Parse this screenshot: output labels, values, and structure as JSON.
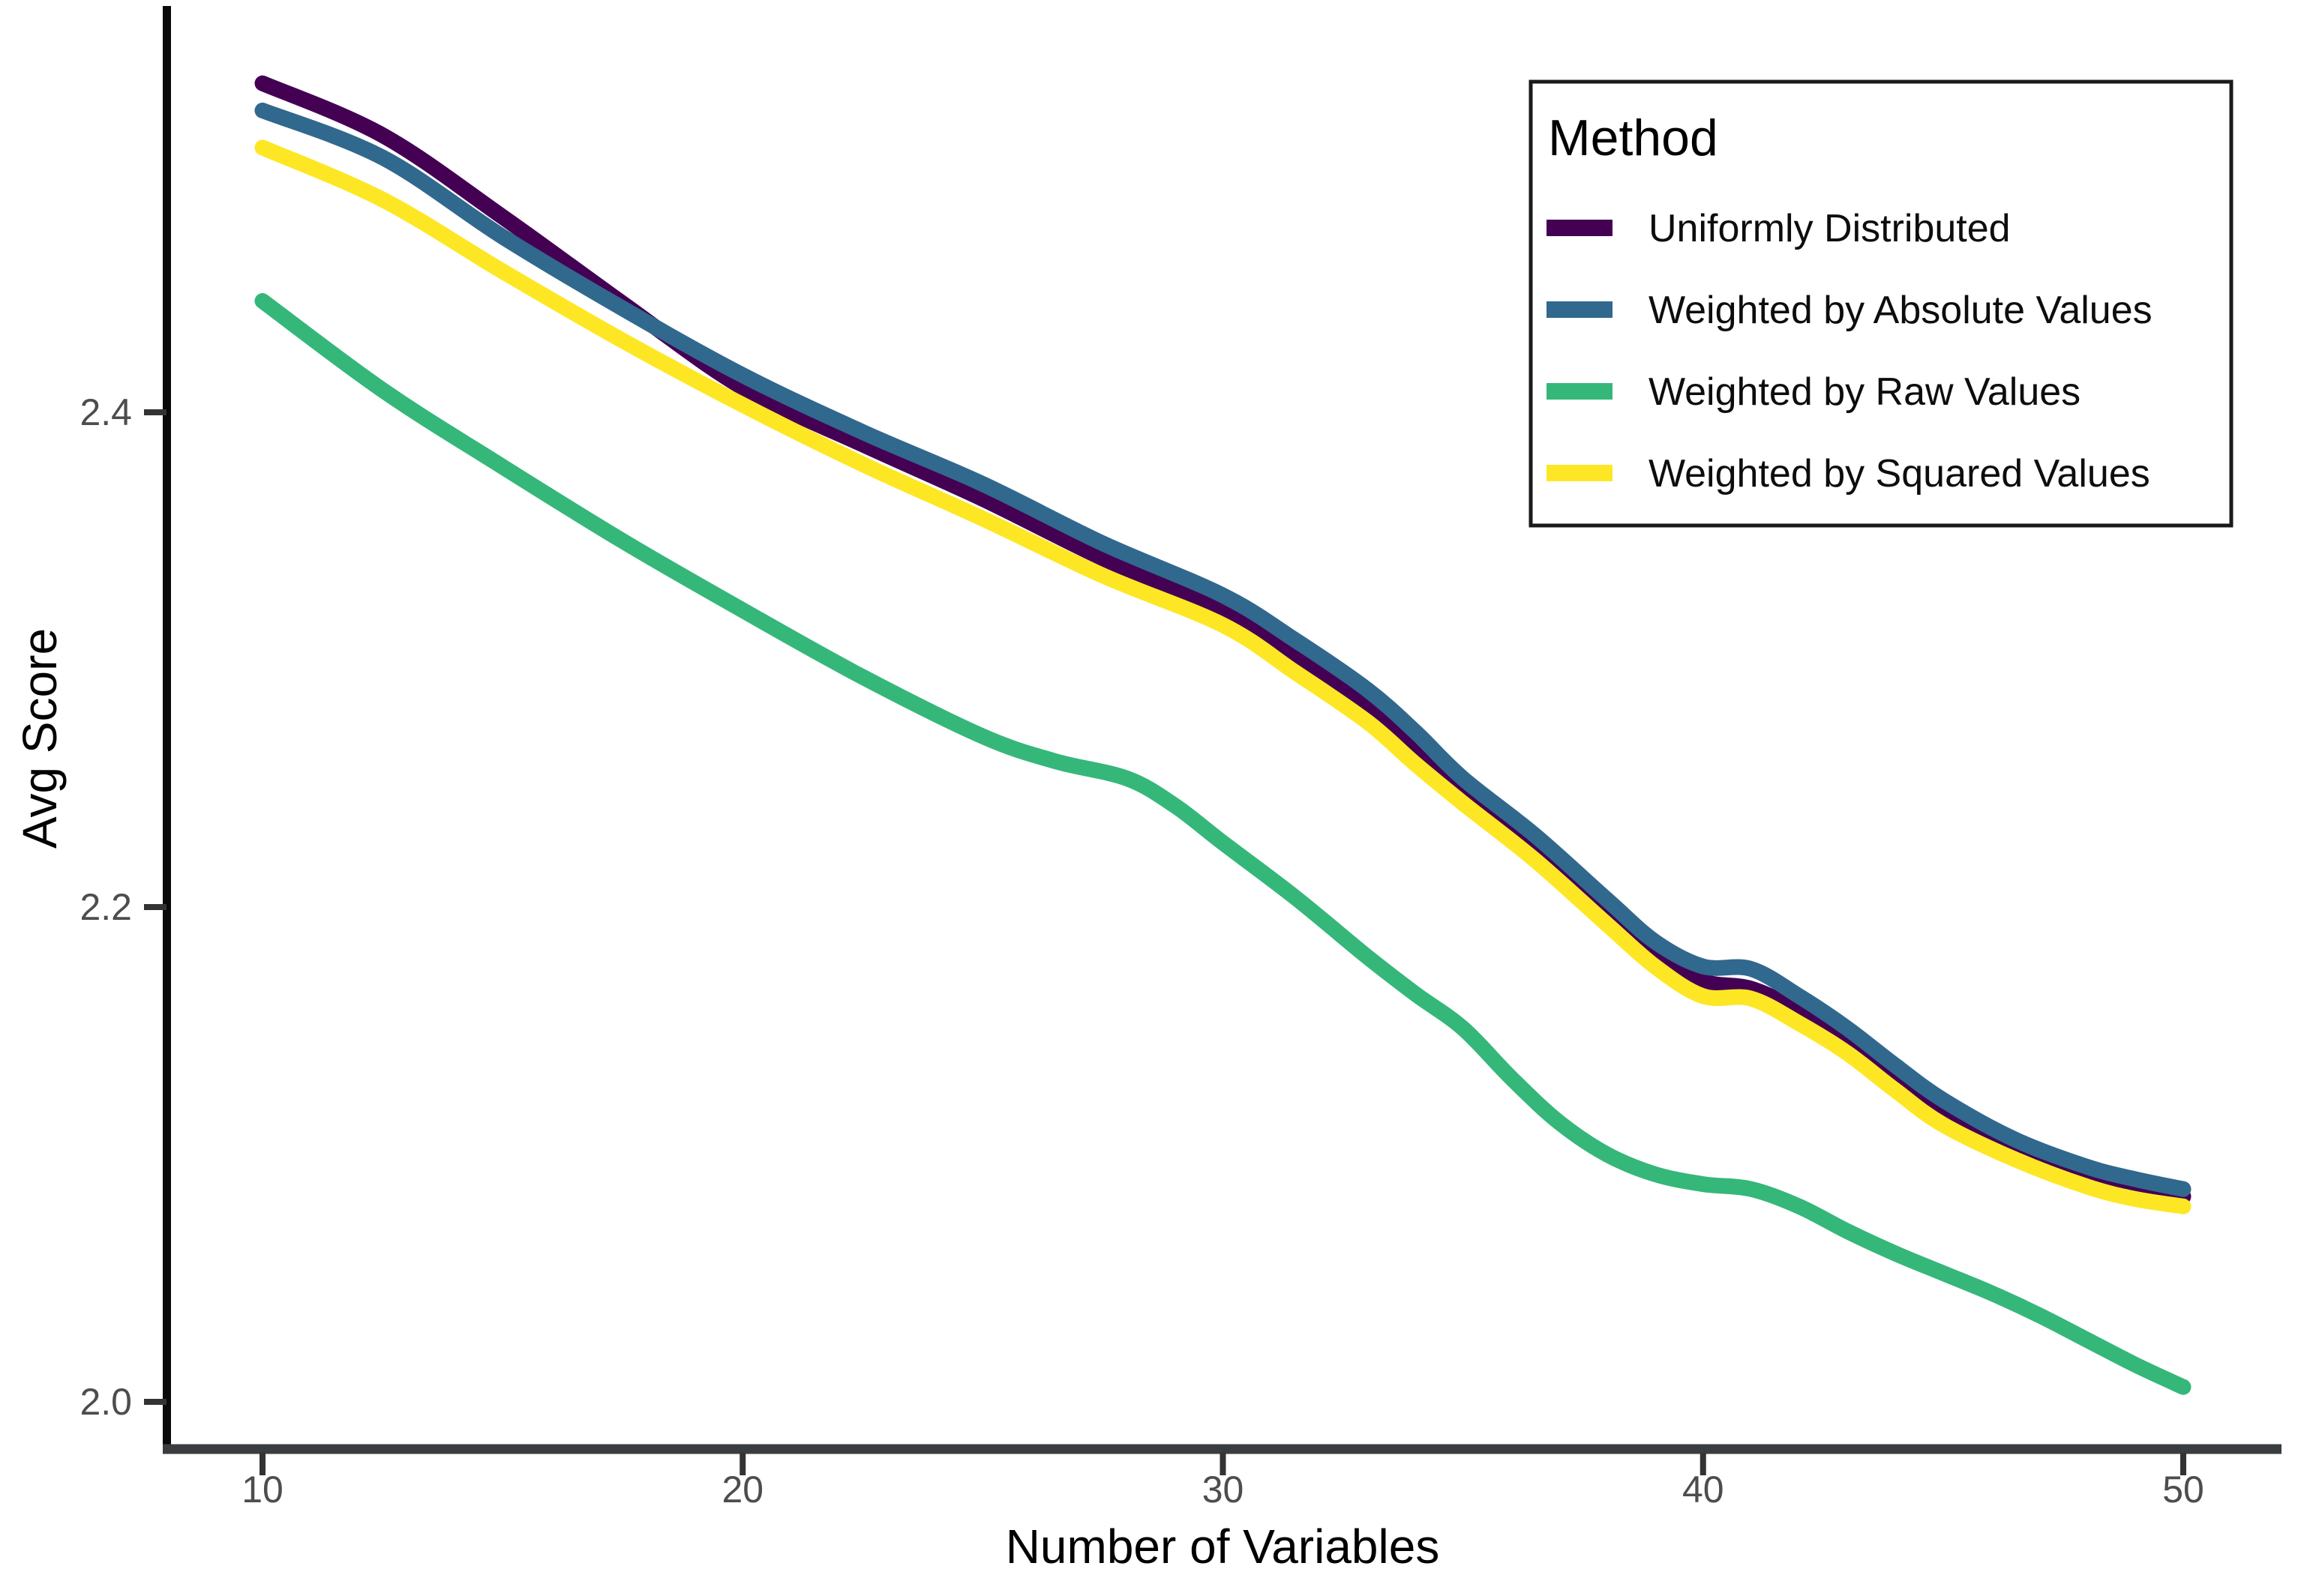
{
  "chart_data": {
    "type": "line",
    "title": "",
    "xlabel": "Number of Variables",
    "ylabel": "Avg Score",
    "x_tick_labels": [
      "10",
      "20",
      "30",
      "40",
      "50"
    ],
    "x_tick_values": [
      10,
      20,
      30,
      40,
      50
    ],
    "y_tick_labels": [
      "2.0",
      "2.2",
      "2.4"
    ],
    "y_tick_values": [
      2.0,
      2.2,
      2.4
    ],
    "xlim": [
      8,
      52
    ],
    "ylim": [
      1.97,
      2.56
    ],
    "grid": false,
    "legend_title": "Method",
    "legend_position": "top-right",
    "series": [
      {
        "name": "Uniformly Distributed",
        "color": "#440154",
        "points": [
          [
            10,
            2.533
          ],
          [
            12.5,
            2.512
          ],
          [
            15,
            2.479
          ],
          [
            17.5,
            2.444
          ],
          [
            20,
            2.41
          ],
          [
            22.5,
            2.387
          ],
          [
            25,
            2.365
          ],
          [
            27.5,
            2.341
          ],
          [
            30,
            2.32
          ],
          [
            31.5,
            2.301
          ],
          [
            33,
            2.281
          ],
          [
            34,
            2.264
          ],
          [
            35,
            2.246
          ],
          [
            36.5,
            2.224
          ],
          [
            38,
            2.198
          ],
          [
            39,
            2.181
          ],
          [
            40,
            2.17
          ],
          [
            41,
            2.167
          ],
          [
            42,
            2.158
          ],
          [
            43,
            2.145
          ],
          [
            44,
            2.13
          ],
          [
            45,
            2.116
          ],
          [
            46.5,
            2.101
          ],
          [
            48,
            2.091
          ],
          [
            49,
            2.086
          ],
          [
            50,
            2.083
          ]
        ]
      },
      {
        "name": "Weighted by Absolute Values",
        "color": "#31688E",
        "points": [
          [
            10,
            2.522
          ],
          [
            12.5,
            2.503
          ],
          [
            15,
            2.471
          ],
          [
            17.5,
            2.442
          ],
          [
            20,
            2.415
          ],
          [
            22.5,
            2.392
          ],
          [
            25,
            2.371
          ],
          [
            27.5,
            2.347
          ],
          [
            30,
            2.326
          ],
          [
            31.5,
            2.308
          ],
          [
            33,
            2.288
          ],
          [
            34,
            2.271
          ],
          [
            35,
            2.252
          ],
          [
            36.5,
            2.229
          ],
          [
            38,
            2.203
          ],
          [
            39,
            2.186
          ],
          [
            40,
            2.176
          ],
          [
            41,
            2.175
          ],
          [
            42,
            2.164
          ],
          [
            43,
            2.151
          ],
          [
            44,
            2.136
          ],
          [
            45,
            2.122
          ],
          [
            46.5,
            2.106
          ],
          [
            48,
            2.095
          ],
          [
            49,
            2.09
          ],
          [
            50,
            2.086
          ]
        ]
      },
      {
        "name": "Weighted by Raw Values",
        "color": "#35B779",
        "points": [
          [
            10,
            2.445
          ],
          [
            12.5,
            2.409
          ],
          [
            15,
            2.378
          ],
          [
            17.5,
            2.348
          ],
          [
            20,
            2.32
          ],
          [
            22.5,
            2.293
          ],
          [
            25,
            2.269
          ],
          [
            26.5,
            2.259
          ],
          [
            28,
            2.252
          ],
          [
            29,
            2.241
          ],
          [
            30,
            2.226
          ],
          [
            31.5,
            2.204
          ],
          [
            33,
            2.18
          ],
          [
            34,
            2.165
          ],
          [
            35,
            2.151
          ],
          [
            36,
            2.131
          ],
          [
            37,
            2.113
          ],
          [
            38,
            2.1
          ],
          [
            39,
            2.092
          ],
          [
            40,
            2.088
          ],
          [
            41,
            2.086
          ],
          [
            42,
            2.079
          ],
          [
            43,
            2.069
          ],
          [
            44,
            2.06
          ],
          [
            45,
            2.052
          ],
          [
            46,
            2.044
          ],
          [
            47,
            2.035
          ],
          [
            48,
            2.025
          ],
          [
            49,
            2.015
          ],
          [
            50,
            2.006
          ]
        ]
      },
      {
        "name": "Weighted by Squared Values",
        "color": "#FDE725",
        "points": [
          [
            10,
            2.507
          ],
          [
            12.5,
            2.486
          ],
          [
            15,
            2.457
          ],
          [
            17.5,
            2.429
          ],
          [
            20,
            2.403
          ],
          [
            22.5,
            2.379
          ],
          [
            25,
            2.357
          ],
          [
            27.5,
            2.334
          ],
          [
            30,
            2.314
          ],
          [
            31.5,
            2.295
          ],
          [
            33,
            2.275
          ],
          [
            34,
            2.258
          ],
          [
            35,
            2.242
          ],
          [
            36.5,
            2.219
          ],
          [
            38,
            2.193
          ],
          [
            39,
            2.176
          ],
          [
            40,
            2.164
          ],
          [
            41,
            2.163
          ],
          [
            42,
            2.153
          ],
          [
            43,
            2.141
          ],
          [
            44,
            2.126
          ],
          [
            45,
            2.112
          ],
          [
            46.5,
            2.098
          ],
          [
            48,
            2.087
          ],
          [
            49,
            2.082
          ],
          [
            50,
            2.079
          ]
        ]
      }
    ]
  }
}
